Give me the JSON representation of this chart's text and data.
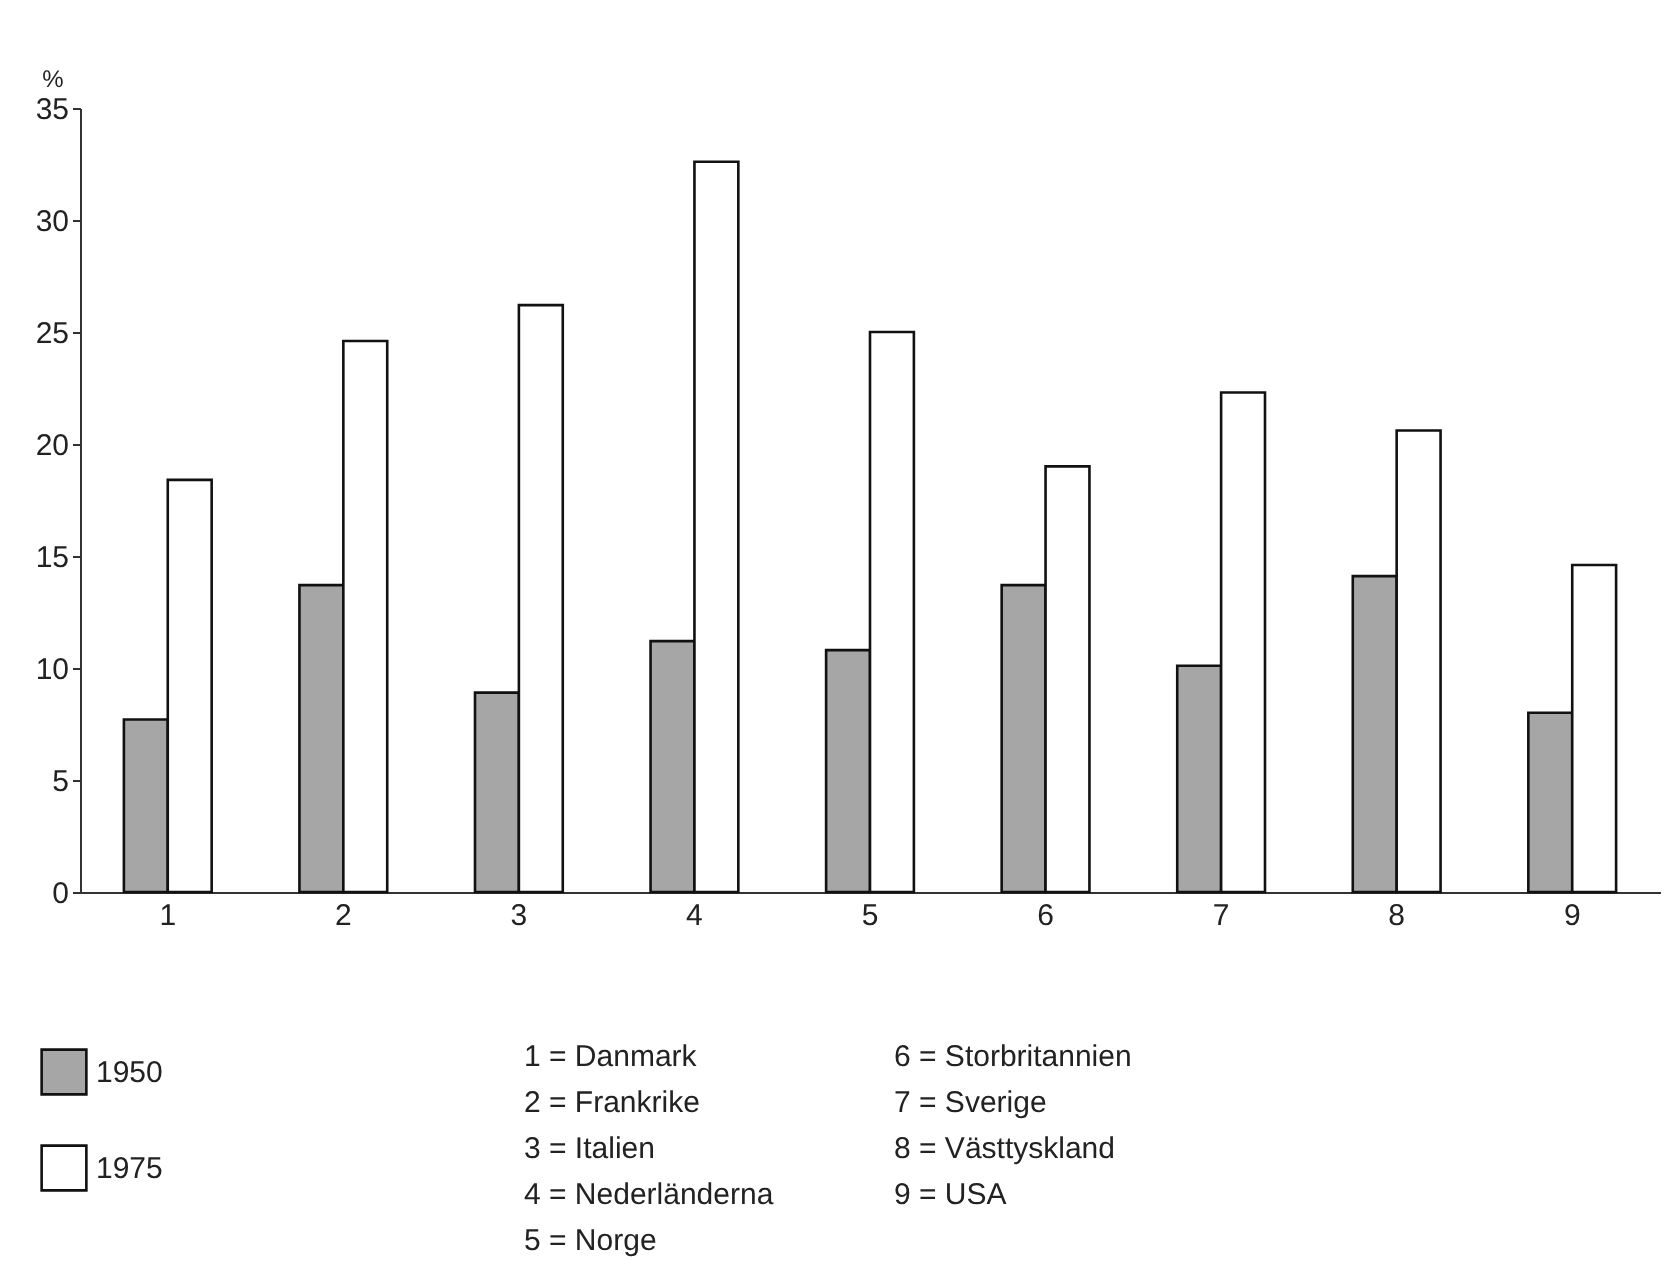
{
  "chart_data": {
    "type": "bar",
    "ylabel": "%",
    "categories": [
      "1",
      "2",
      "3",
      "4",
      "5",
      "6",
      "7",
      "8",
      "9"
    ],
    "series": [
      {
        "name": "1950",
        "color": "#a6a6a6",
        "values": [
          7.7,
          13.7,
          8.9,
          11.2,
          10.8,
          13.7,
          10.1,
          14.1,
          8.0
        ]
      },
      {
        "name": "1975",
        "color": "#ffffff",
        "values": [
          18.4,
          24.6,
          26.2,
          32.6,
          25.0,
          19.0,
          22.3,
          20.6,
          14.6
        ]
      }
    ],
    "ylim": [
      0,
      35
    ],
    "yticks": [
      0,
      5,
      10,
      15,
      20,
      25,
      30,
      35
    ],
    "grid": false,
    "legend": "bottom left",
    "annotations": [
      "1 = Danmark",
      "2 = Frankrike",
      "3 = Italien",
      "4 = Nederländerna",
      "5 = Norge",
      "6 = Storbritannien",
      "7 = Sverige",
      "8 = Västtyskland",
      "9 = USA"
    ]
  }
}
